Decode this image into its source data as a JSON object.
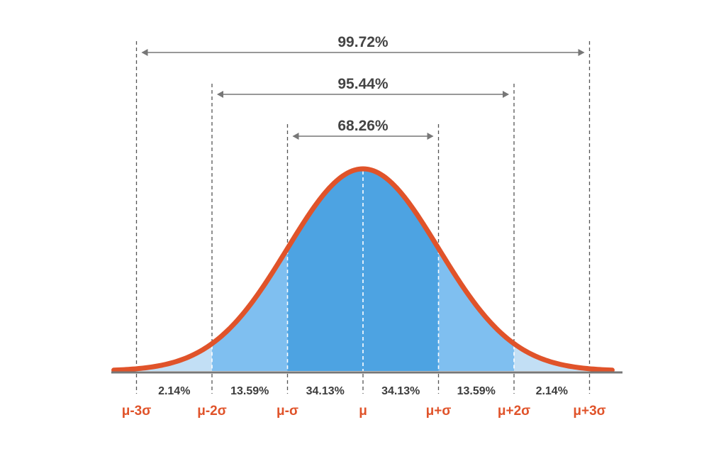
{
  "chart_data": {
    "type": "area",
    "title": "",
    "xlabel": "",
    "ylabel": "",
    "curve": "normal-distribution",
    "xlim": [
      -3.3,
      3.3
    ],
    "x_ticks": [
      {
        "x": -3,
        "label": "μ-3σ"
      },
      {
        "x": -2,
        "label": "μ-2σ"
      },
      {
        "x": -1,
        "label": "μ-σ"
      },
      {
        "x": 0,
        "label": "μ"
      },
      {
        "x": 1,
        "label": "μ+σ"
      },
      {
        "x": 2,
        "label": "μ+2σ"
      },
      {
        "x": 3,
        "label": "μ+3σ"
      }
    ],
    "regions": [
      {
        "from": -3,
        "to": -2,
        "label": "2.14%",
        "shade": "light"
      },
      {
        "from": -2,
        "to": -1,
        "label": "13.59%",
        "shade": "medium"
      },
      {
        "from": -1,
        "to": 0,
        "label": "34.13%",
        "shade": "dark"
      },
      {
        "from": 0,
        "to": 1,
        "label": "34.13%",
        "shade": "dark"
      },
      {
        "from": 1,
        "to": 2,
        "label": "13.59%",
        "shade": "medium"
      },
      {
        "from": 2,
        "to": 3,
        "label": "2.14%",
        "shade": "light"
      }
    ],
    "brackets": [
      {
        "from": -3,
        "to": 3,
        "label": "99.72%"
      },
      {
        "from": -2,
        "to": 2,
        "label": "95.44%"
      },
      {
        "from": -1,
        "to": 1,
        "label": "68.26%"
      }
    ],
    "colors": {
      "curve": "#e0532a",
      "dark_fill": "#4da3e2",
      "medium_fill": "#7fbff0",
      "light_fill": "#c2dff5",
      "baseline": "#777777",
      "guide": "#555555",
      "bracket": "#777777",
      "tick_label": "#e0532a"
    }
  }
}
